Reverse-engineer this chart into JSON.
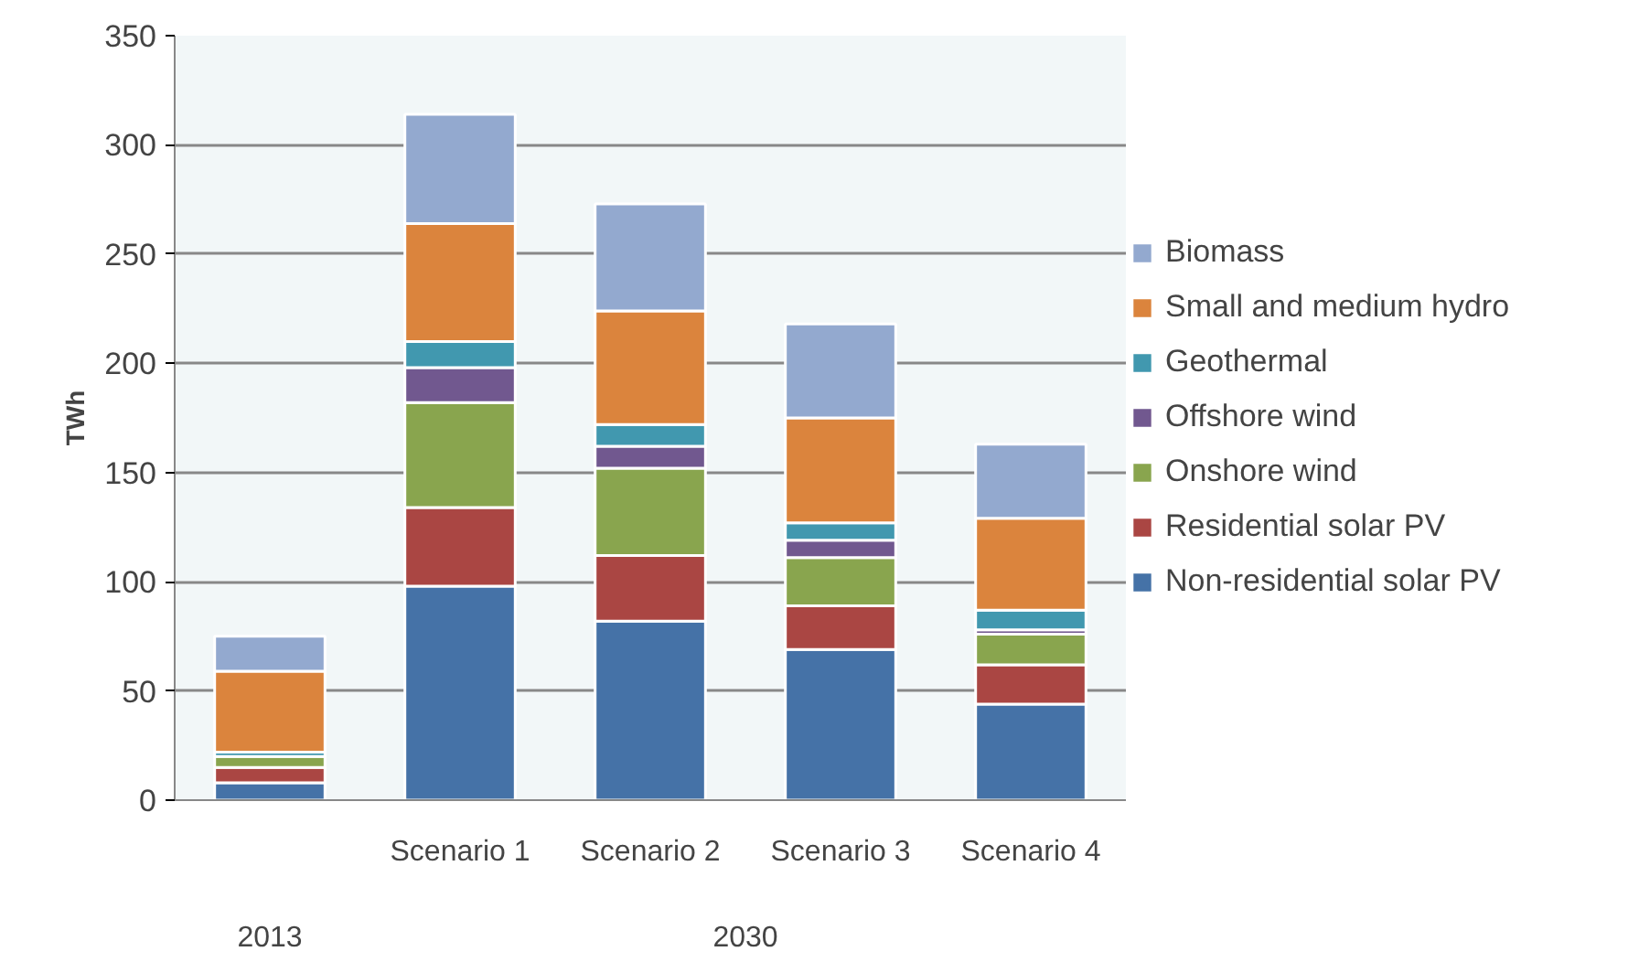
{
  "chart_data": {
    "type": "bar",
    "stacked": true,
    "ylabel": "TWh",
    "categories": [
      null,
      "Scenario 1",
      "Scenario 2",
      "Scenario 3",
      "Scenario 4"
    ],
    "annotations": [
      "2013",
      "2030"
    ],
    "series": [
      {
        "name": "Non-residential solar PV",
        "color": "#4572a7",
        "values": [
          8,
          98,
          82,
          69,
          44
        ]
      },
      {
        "name": "Residential solar PV",
        "color": "#aa4643",
        "values": [
          7,
          36,
          30,
          20,
          18
        ]
      },
      {
        "name": "Onshore wind",
        "color": "#89a54e",
        "values": [
          5,
          48,
          40,
          22,
          14
        ]
      },
      {
        "name": "Offshore wind",
        "color": "#71588f",
        "values": [
          null,
          16,
          10,
          8,
          2
        ]
      },
      {
        "name": "Geothermal",
        "color": "#4198af",
        "values": [
          2,
          12,
          10,
          8,
          9
        ]
      },
      {
        "name": "Small and medium hydro",
        "color": "#db843d",
        "values": [
          37,
          54,
          52,
          48,
          42
        ]
      },
      {
        "name": "Biomass",
        "color": "#93a9cf",
        "values": [
          16,
          50,
          49,
          43,
          34
        ]
      }
    ],
    "ylim": [
      0,
      350
    ],
    "yticks": [
      0,
      50,
      100,
      150,
      200,
      250,
      300,
      350
    ],
    "grid": "y",
    "legend": "right"
  }
}
